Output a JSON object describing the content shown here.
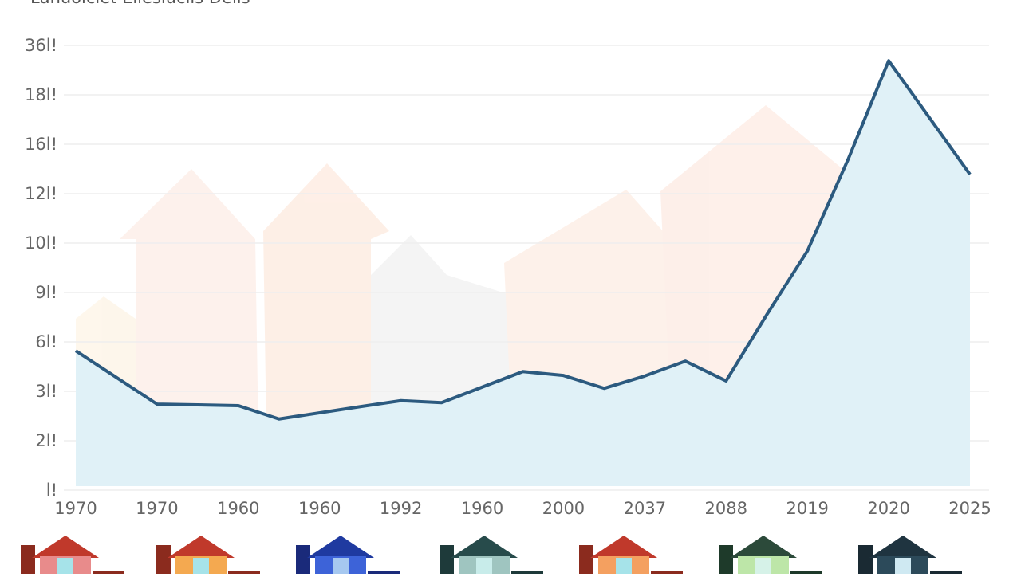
{
  "chart_data": {
    "type": "area-line",
    "title": "Lanuolclet Ellesiuclis Delis",
    "xlim": [
      0,
      11
    ],
    "xticks": [
      {
        "value": 0,
        "label": "1970"
      },
      {
        "value": 1,
        "label": "1970"
      },
      {
        "value": 2,
        "label": "1960"
      },
      {
        "value": 3,
        "label": "1960"
      },
      {
        "value": 4,
        "label": "1992"
      },
      {
        "value": 5,
        "label": "1960"
      },
      {
        "value": 6,
        "label": "2000"
      },
      {
        "value": 7,
        "label": "2037"
      },
      {
        "value": 8,
        "label": "2088"
      },
      {
        "value": 9,
        "label": "2019"
      },
      {
        "value": 10,
        "label": "2020"
      },
      {
        "value": 11,
        "label": "2025"
      }
    ],
    "ylim": [
      0,
      9
    ],
    "yticks": [
      {
        "value": 0,
        "label": "l!"
      },
      {
        "value": 1,
        "label": "2l!"
      },
      {
        "value": 2,
        "label": "3l!"
      },
      {
        "value": 3,
        "label": "6l!"
      },
      {
        "value": 4,
        "label": "9l!"
      },
      {
        "value": 5,
        "label": "10l!"
      },
      {
        "value": 6,
        "label": "12l!"
      },
      {
        "value": 7,
        "label": "16l!"
      },
      {
        "value": 8,
        "label": "18l!"
      },
      {
        "value": 9,
        "label": "36l!"
      }
    ],
    "grid": true,
    "series": [
      {
        "color": "#2c5a7f",
        "fill": "#e0f1f7",
        "x": [
          0,
          1,
          2,
          2.5,
          3.5,
          4,
          4.5,
          5.5,
          6,
          6.5,
          7,
          7.5,
          8,
          8.5,
          9,
          9.5,
          10,
          11
        ],
        "values": [
          2.82,
          1.74,
          1.71,
          1.44,
          1.69,
          1.81,
          1.77,
          2.4,
          2.32,
          2.06,
          2.31,
          2.61,
          2.21,
          3.55,
          4.84,
          6.69,
          8.69,
          6.39
        ]
      }
    ]
  }
}
